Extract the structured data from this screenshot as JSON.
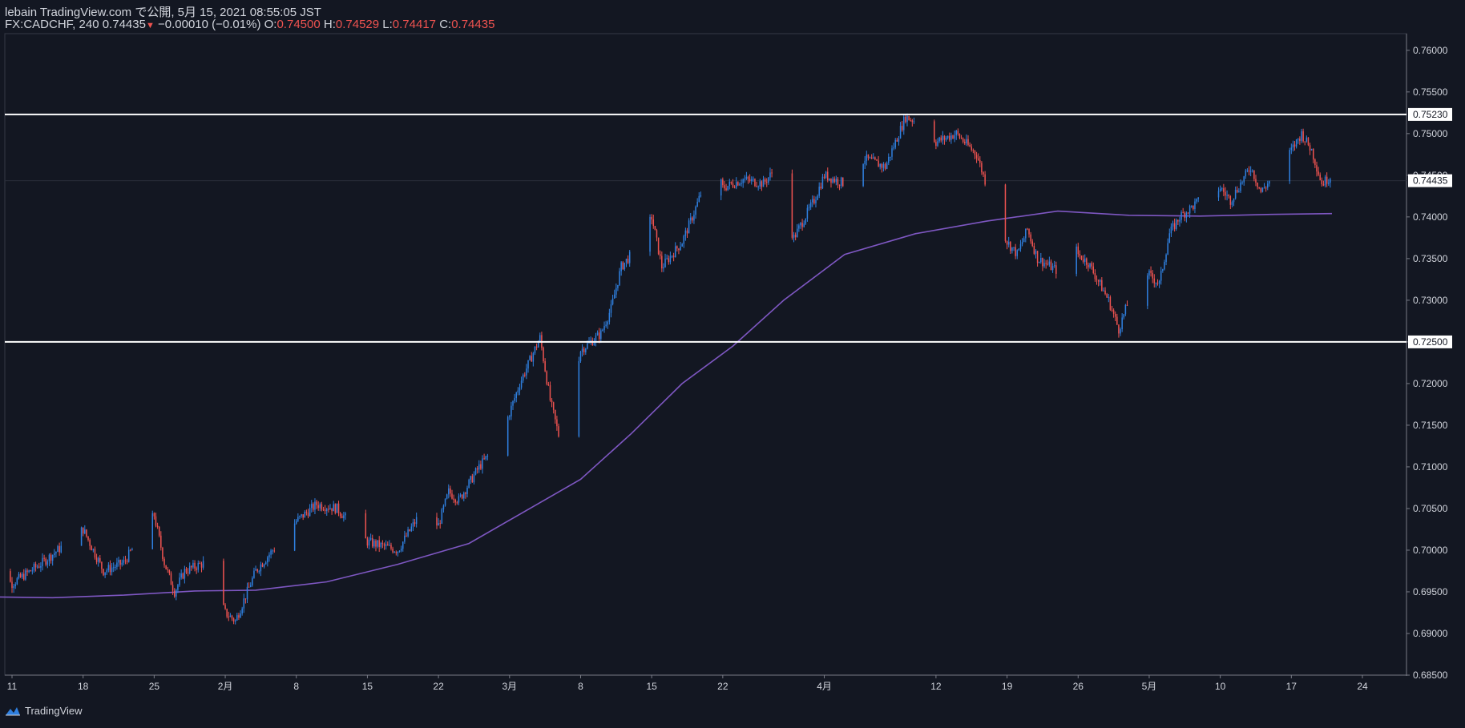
{
  "header": {
    "line1": "lebain TradingView.com で公開, 5月 15, 2021 08:55:05 JST",
    "symbol": "FX:CADCHF, 240",
    "last": "0.74435",
    "change_arrow": "▼",
    "change": "−0.00010 (−0.01%)",
    "o_label": "O:",
    "o": "0.74500",
    "h_label": "H:",
    "h": "0.74529",
    "l_label": "L:",
    "l": "0.74417",
    "c_label": "C:",
    "c": "0.74435"
  },
  "brand": "TradingView",
  "colors": {
    "background": "#131722",
    "up": "#2f80e0",
    "down": "#ef5350",
    "ma": "#7e57c2",
    "hline": "#ffffff",
    "axis_text": "#d1d4dc"
  },
  "chart_data": {
    "type": "candlestick",
    "timeframe": "240",
    "y_ticks": [
      "0.76000",
      "0.75500",
      "0.75000",
      "0.74500",
      "0.74000",
      "0.73500",
      "0.73000",
      "0.72500",
      "0.72000",
      "0.71500",
      "0.71000",
      "0.70500",
      "0.70000",
      "0.69500",
      "0.69000",
      "0.68500"
    ],
    "ylim": [
      0.685,
      0.762
    ],
    "x_ticks": [
      {
        "label": "11",
        "date": "2021-01-11"
      },
      {
        "label": "18",
        "date": "2021-01-18"
      },
      {
        "label": "25",
        "date": "2021-01-25"
      },
      {
        "label": "2月",
        "date": "2021-02-01"
      },
      {
        "label": "8",
        "date": "2021-02-08"
      },
      {
        "label": "15",
        "date": "2021-02-15"
      },
      {
        "label": "22",
        "date": "2021-02-22"
      },
      {
        "label": "3月",
        "date": "2021-03-01"
      },
      {
        "label": "8",
        "date": "2021-03-08"
      },
      {
        "label": "15",
        "date": "2021-03-15"
      },
      {
        "label": "22",
        "date": "2021-03-22"
      },
      {
        "label": "4月",
        "date": "2021-04-01"
      },
      {
        "label": "12",
        "date": "2021-04-12"
      },
      {
        "label": "19",
        "date": "2021-04-19"
      },
      {
        "label": "26",
        "date": "2021-04-26"
      },
      {
        "label": "5月",
        "date": "2021-05-03"
      },
      {
        "label": "10",
        "date": "2021-05-10"
      },
      {
        "label": "17",
        "date": "2021-05-17"
      },
      {
        "label": "24",
        "date": "2021-05-24"
      }
    ],
    "horizontal_lines": [
      {
        "value": 0.7523,
        "label": "0.75230"
      },
      {
        "value": 0.725,
        "label": "0.72500"
      }
    ],
    "last_price_label": "0.74435",
    "last_price": 0.74435,
    "close_path": [
      {
        "date": "2021-01-08",
        "close": 0.6985
      },
      {
        "date": "2021-01-11",
        "close": 0.696
      },
      {
        "date": "2021-01-14",
        "close": 0.6985
      },
      {
        "date": "2021-01-18",
        "close": 0.7025
      },
      {
        "date": "2021-01-20",
        "close": 0.6975
      },
      {
        "date": "2021-01-22",
        "close": 0.6985
      },
      {
        "date": "2021-01-25",
        "close": 0.7042
      },
      {
        "date": "2021-01-26",
        "close": 0.6985
      },
      {
        "date": "2021-01-27",
        "close": 0.695
      },
      {
        "date": "2021-01-28",
        "close": 0.6975
      },
      {
        "date": "2021-01-30",
        "close": 0.6985
      },
      {
        "date": "2021-02-01",
        "close": 0.6925
      },
      {
        "date": "2021-02-02",
        "close": 0.6915
      },
      {
        "date": "2021-02-04",
        "close": 0.6975
      },
      {
        "date": "2021-02-08",
        "close": 0.7035
      },
      {
        "date": "2021-02-10",
        "close": 0.7055
      },
      {
        "date": "2021-02-12",
        "close": 0.705
      },
      {
        "date": "2021-02-15",
        "close": 0.701
      },
      {
        "date": "2021-02-18",
        "close": 0.7
      },
      {
        "date": "2021-02-20",
        "close": 0.704
      },
      {
        "date": "2021-02-22",
        "close": 0.703
      },
      {
        "date": "2021-02-23",
        "close": 0.707
      },
      {
        "date": "2021-02-24",
        "close": 0.706
      },
      {
        "date": "2021-02-26",
        "close": 0.71
      },
      {
        "date": "2021-02-28",
        "close": 0.713
      },
      {
        "date": "2021-03-02",
        "close": 0.72
      },
      {
        "date": "2021-03-04",
        "close": 0.7255
      },
      {
        "date": "2021-03-05",
        "close": 0.718
      },
      {
        "date": "2021-03-06",
        "close": 0.713
      },
      {
        "date": "2021-03-07",
        "close": 0.719
      },
      {
        "date": "2021-03-08",
        "close": 0.724
      },
      {
        "date": "2021-03-10",
        "close": 0.726
      },
      {
        "date": "2021-03-11",
        "close": 0.729
      },
      {
        "date": "2021-03-12",
        "close": 0.734
      },
      {
        "date": "2021-03-14",
        "close": 0.737
      },
      {
        "date": "2021-03-15",
        "close": 0.74
      },
      {
        "date": "2021-03-16",
        "close": 0.734
      },
      {
        "date": "2021-03-18",
        "close": 0.737
      },
      {
        "date": "2021-03-19",
        "close": 0.74
      },
      {
        "date": "2021-03-21",
        "close": 0.7465
      },
      {
        "date": "2021-03-22",
        "close": 0.7435
      },
      {
        "date": "2021-03-24",
        "close": 0.7445
      },
      {
        "date": "2021-03-26",
        "close": 0.744
      },
      {
        "date": "2021-03-27",
        "close": 0.7455
      },
      {
        "date": "2021-03-28",
        "close": 0.741
      },
      {
        "date": "2021-03-29",
        "close": 0.7375
      },
      {
        "date": "2021-03-31",
        "close": 0.742
      },
      {
        "date": "2021-04-01",
        "close": 0.745
      },
      {
        "date": "2021-04-03",
        "close": 0.744
      },
      {
        "date": "2021-04-05",
        "close": 0.747
      },
      {
        "date": "2021-04-07",
        "close": 0.746
      },
      {
        "date": "2021-04-09",
        "close": 0.752
      },
      {
        "date": "2021-04-11",
        "close": 0.751
      },
      {
        "date": "2021-04-12",
        "close": 0.749
      },
      {
        "date": "2021-04-14",
        "close": 0.75
      },
      {
        "date": "2021-04-16",
        "close": 0.7475
      },
      {
        "date": "2021-04-18",
        "close": 0.74
      },
      {
        "date": "2021-04-19",
        "close": 0.737
      },
      {
        "date": "2021-04-20",
        "close": 0.7355
      },
      {
        "date": "2021-04-21",
        "close": 0.7385
      },
      {
        "date": "2021-04-22",
        "close": 0.735
      },
      {
        "date": "2021-04-24",
        "close": 0.7335
      },
      {
        "date": "2021-04-25",
        "close": 0.7385
      },
      {
        "date": "2021-04-26",
        "close": 0.7355
      },
      {
        "date": "2021-04-27",
        "close": 0.7345
      },
      {
        "date": "2021-04-29",
        "close": 0.73
      },
      {
        "date": "2021-04-30",
        "close": 0.7265
      },
      {
        "date": "2021-05-01",
        "close": 0.73
      },
      {
        "date": "2021-05-02",
        "close": 0.7345
      },
      {
        "date": "2021-05-03",
        "close": 0.733
      },
      {
        "date": "2021-05-04",
        "close": 0.732
      },
      {
        "date": "2021-05-05",
        "close": 0.738
      },
      {
        "date": "2021-05-06",
        "close": 0.74
      },
      {
        "date": "2021-05-08",
        "close": 0.742
      },
      {
        "date": "2021-05-10",
        "close": 0.7435
      },
      {
        "date": "2021-05-11",
        "close": 0.742
      },
      {
        "date": "2021-05-13",
        "close": 0.746
      },
      {
        "date": "2021-05-14",
        "close": 0.743
      },
      {
        "date": "2021-05-16",
        "close": 0.746
      },
      {
        "date": "2021-05-18",
        "close": 0.75
      },
      {
        "date": "2021-05-19",
        "close": 0.748
      },
      {
        "date": "2021-05-20",
        "close": 0.744
      },
      {
        "date": "2021-05-21",
        "close": 0.745
      }
    ],
    "moving_average": [
      {
        "date": "2021-01-08",
        "value": 0.6944
      },
      {
        "date": "2021-01-15",
        "value": 0.6943
      },
      {
        "date": "2021-01-22",
        "value": 0.6946
      },
      {
        "date": "2021-01-29",
        "value": 0.6951
      },
      {
        "date": "2021-02-04",
        "value": 0.6952
      },
      {
        "date": "2021-02-11",
        "value": 0.6962
      },
      {
        "date": "2021-02-18",
        "value": 0.6983
      },
      {
        "date": "2021-02-25",
        "value": 0.7008
      },
      {
        "date": "2021-03-03",
        "value": 0.705
      },
      {
        "date": "2021-03-08",
        "value": 0.7085
      },
      {
        "date": "2021-03-13",
        "value": 0.714
      },
      {
        "date": "2021-03-18",
        "value": 0.72
      },
      {
        "date": "2021-03-23",
        "value": 0.7245
      },
      {
        "date": "2021-03-28",
        "value": 0.73
      },
      {
        "date": "2021-04-03",
        "value": 0.7355
      },
      {
        "date": "2021-04-10",
        "value": 0.738
      },
      {
        "date": "2021-04-17",
        "value": 0.7395
      },
      {
        "date": "2021-04-24",
        "value": 0.7407
      },
      {
        "date": "2021-05-01",
        "value": 0.7402
      },
      {
        "date": "2021-05-08",
        "value": 0.7401
      },
      {
        "date": "2021-05-15",
        "value": 0.7403
      },
      {
        "date": "2021-05-21",
        "value": 0.7404
      }
    ]
  }
}
